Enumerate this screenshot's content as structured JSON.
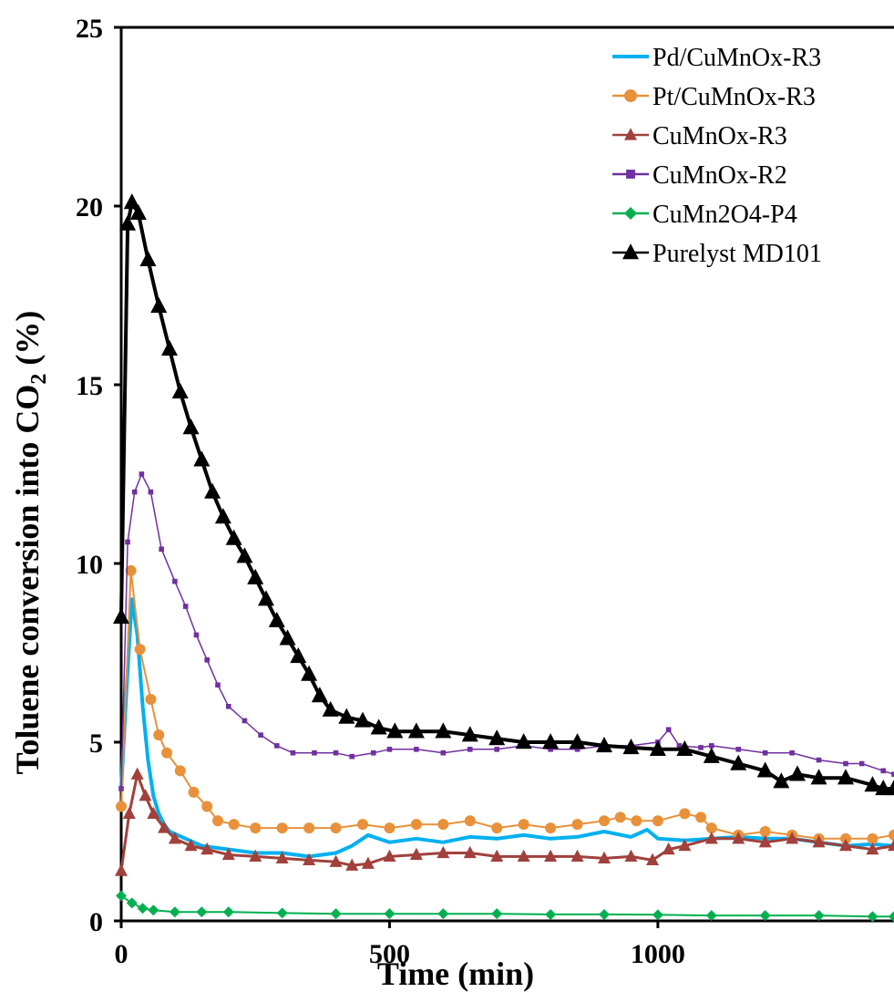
{
  "chart_data": {
    "type": "line",
    "xlabel": "Time (min)",
    "ylabel": {
      "main": "Toluene conversion into CO",
      "sub": "2",
      "suffix": " (%)"
    },
    "xlim": [
      0,
      1440
    ],
    "ylim": [
      0,
      25
    ],
    "x_ticks": [
      0,
      500,
      1000
    ],
    "y_ticks": [
      0,
      5,
      10,
      15,
      20,
      25
    ],
    "grid": false,
    "legend_position": "top-right",
    "series": [
      {
        "name": "Pd/CuMnOx-R3",
        "color": "#00b0f0",
        "marker": "none",
        "points": [
          [
            0,
            3.7
          ],
          [
            10,
            6.5
          ],
          [
            20,
            9.0
          ],
          [
            30,
            8.0
          ],
          [
            40,
            6.0
          ],
          [
            50,
            4.5
          ],
          [
            60,
            3.5
          ],
          [
            70,
            3.0
          ],
          [
            80,
            2.7
          ],
          [
            90,
            2.5
          ],
          [
            120,
            2.3
          ],
          [
            150,
            2.1
          ],
          [
            200,
            2.0
          ],
          [
            250,
            1.9
          ],
          [
            300,
            1.9
          ],
          [
            350,
            1.8
          ],
          [
            400,
            1.9
          ],
          [
            430,
            2.1
          ],
          [
            460,
            2.4
          ],
          [
            500,
            2.2
          ],
          [
            550,
            2.3
          ],
          [
            600,
            2.2
          ],
          [
            650,
            2.35
          ],
          [
            700,
            2.3
          ],
          [
            750,
            2.4
          ],
          [
            800,
            2.3
          ],
          [
            850,
            2.35
          ],
          [
            900,
            2.5
          ],
          [
            950,
            2.35
          ],
          [
            980,
            2.55
          ],
          [
            1000,
            2.3
          ],
          [
            1050,
            2.25
          ],
          [
            1100,
            2.3
          ],
          [
            1150,
            2.35
          ],
          [
            1200,
            2.3
          ],
          [
            1250,
            2.3
          ],
          [
            1300,
            2.2
          ],
          [
            1350,
            2.1
          ],
          [
            1400,
            2.15
          ],
          [
            1440,
            2.1
          ]
        ]
      },
      {
        "name": "Pt/CuMnOx-R3",
        "color": "#e8913a",
        "marker": "circle",
        "points": [
          [
            0,
            3.2
          ],
          [
            18,
            9.8
          ],
          [
            35,
            7.6
          ],
          [
            55,
            6.2
          ],
          [
            70,
            5.2
          ],
          [
            85,
            4.7
          ],
          [
            110,
            4.2
          ],
          [
            135,
            3.6
          ],
          [
            160,
            3.2
          ],
          [
            180,
            2.8
          ],
          [
            210,
            2.7
          ],
          [
            250,
            2.6
          ],
          [
            300,
            2.6
          ],
          [
            350,
            2.6
          ],
          [
            400,
            2.6
          ],
          [
            450,
            2.7
          ],
          [
            500,
            2.6
          ],
          [
            550,
            2.7
          ],
          [
            600,
            2.7
          ],
          [
            650,
            2.8
          ],
          [
            700,
            2.6
          ],
          [
            750,
            2.7
          ],
          [
            800,
            2.6
          ],
          [
            850,
            2.7
          ],
          [
            900,
            2.8
          ],
          [
            930,
            2.9
          ],
          [
            960,
            2.8
          ],
          [
            1000,
            2.8
          ],
          [
            1050,
            3.0
          ],
          [
            1080,
            2.9
          ],
          [
            1100,
            2.6
          ],
          [
            1150,
            2.4
          ],
          [
            1200,
            2.5
          ],
          [
            1250,
            2.4
          ],
          [
            1300,
            2.3
          ],
          [
            1350,
            2.3
          ],
          [
            1400,
            2.3
          ],
          [
            1440,
            2.4
          ]
        ]
      },
      {
        "name": "CuMnOx-R3",
        "color": "#a0413c",
        "marker": "triangle",
        "points": [
          [
            0,
            1.4
          ],
          [
            15,
            3.0
          ],
          [
            30,
            4.1
          ],
          [
            45,
            3.5
          ],
          [
            60,
            3.0
          ],
          [
            80,
            2.6
          ],
          [
            100,
            2.3
          ],
          [
            130,
            2.1
          ],
          [
            160,
            2.0
          ],
          [
            200,
            1.85
          ],
          [
            250,
            1.8
          ],
          [
            300,
            1.75
          ],
          [
            350,
            1.7
          ],
          [
            400,
            1.65
          ],
          [
            430,
            1.55
          ],
          [
            460,
            1.6
          ],
          [
            500,
            1.8
          ],
          [
            550,
            1.85
          ],
          [
            600,
            1.9
          ],
          [
            650,
            1.9
          ],
          [
            700,
            1.8
          ],
          [
            750,
            1.8
          ],
          [
            800,
            1.8
          ],
          [
            850,
            1.8
          ],
          [
            900,
            1.75
          ],
          [
            950,
            1.8
          ],
          [
            990,
            1.7
          ],
          [
            1020,
            2.0
          ],
          [
            1050,
            2.1
          ],
          [
            1100,
            2.3
          ],
          [
            1150,
            2.3
          ],
          [
            1200,
            2.2
          ],
          [
            1250,
            2.3
          ],
          [
            1300,
            2.2
          ],
          [
            1350,
            2.1
          ],
          [
            1400,
            2.0
          ],
          [
            1440,
            2.1
          ]
        ]
      },
      {
        "name": "CuMnOx-R2",
        "color": "#7030a0",
        "marker": "square",
        "points": [
          [
            0,
            3.7
          ],
          [
            12,
            10.6
          ],
          [
            25,
            12.0
          ],
          [
            38,
            12.5
          ],
          [
            55,
            12.0
          ],
          [
            75,
            10.4
          ],
          [
            100,
            9.5
          ],
          [
            120,
            8.8
          ],
          [
            140,
            8.0
          ],
          [
            160,
            7.3
          ],
          [
            180,
            6.6
          ],
          [
            200,
            6.0
          ],
          [
            230,
            5.6
          ],
          [
            260,
            5.2
          ],
          [
            290,
            4.9
          ],
          [
            320,
            4.7
          ],
          [
            360,
            4.7
          ],
          [
            400,
            4.7
          ],
          [
            430,
            4.6
          ],
          [
            470,
            4.7
          ],
          [
            500,
            4.8
          ],
          [
            550,
            4.8
          ],
          [
            600,
            4.7
          ],
          [
            650,
            4.8
          ],
          [
            700,
            4.8
          ],
          [
            750,
            4.9
          ],
          [
            800,
            4.8
          ],
          [
            850,
            4.8
          ],
          [
            900,
            4.9
          ],
          [
            950,
            4.9
          ],
          [
            1000,
            5.0
          ],
          [
            1020,
            5.35
          ],
          [
            1040,
            4.9
          ],
          [
            1080,
            4.85
          ],
          [
            1100,
            4.9
          ],
          [
            1150,
            4.8
          ],
          [
            1200,
            4.7
          ],
          [
            1250,
            4.7
          ],
          [
            1300,
            4.5
          ],
          [
            1350,
            4.4
          ],
          [
            1380,
            4.4
          ],
          [
            1420,
            4.2
          ],
          [
            1440,
            4.1
          ]
        ]
      },
      {
        "name": "CuMn2O4-P4",
        "color": "#00b050",
        "marker": "diamond",
        "points": [
          [
            0,
            0.7
          ],
          [
            20,
            0.5
          ],
          [
            40,
            0.35
          ],
          [
            60,
            0.3
          ],
          [
            100,
            0.25
          ],
          [
            150,
            0.25
          ],
          [
            200,
            0.25
          ],
          [
            300,
            0.22
          ],
          [
            400,
            0.2
          ],
          [
            500,
            0.2
          ],
          [
            600,
            0.2
          ],
          [
            700,
            0.2
          ],
          [
            800,
            0.18
          ],
          [
            900,
            0.18
          ],
          [
            1000,
            0.17
          ],
          [
            1100,
            0.15
          ],
          [
            1200,
            0.15
          ],
          [
            1300,
            0.15
          ],
          [
            1400,
            0.12
          ],
          [
            1440,
            0.12
          ]
        ]
      },
      {
        "name": "Purelyst MD101",
        "color": "#000000",
        "marker": "triangle",
        "points": [
          [
            0,
            8.5
          ],
          [
            12,
            19.5
          ],
          [
            20,
            20.1
          ],
          [
            32,
            19.8
          ],
          [
            50,
            18.5
          ],
          [
            70,
            17.2
          ],
          [
            90,
            16.0
          ],
          [
            110,
            14.8
          ],
          [
            130,
            13.8
          ],
          [
            150,
            12.9
          ],
          [
            170,
            12.0
          ],
          [
            190,
            11.3
          ],
          [
            210,
            10.7
          ],
          [
            230,
            10.2
          ],
          [
            250,
            9.6
          ],
          [
            270,
            9.0
          ],
          [
            290,
            8.4
          ],
          [
            310,
            7.9
          ],
          [
            330,
            7.4
          ],
          [
            350,
            6.9
          ],
          [
            370,
            6.3
          ],
          [
            390,
            5.9
          ],
          [
            420,
            5.7
          ],
          [
            450,
            5.6
          ],
          [
            480,
            5.4
          ],
          [
            510,
            5.3
          ],
          [
            550,
            5.3
          ],
          [
            600,
            5.3
          ],
          [
            650,
            5.2
          ],
          [
            700,
            5.1
          ],
          [
            750,
            5.0
          ],
          [
            800,
            5.0
          ],
          [
            850,
            5.0
          ],
          [
            900,
            4.9
          ],
          [
            950,
            4.85
          ],
          [
            1000,
            4.8
          ],
          [
            1050,
            4.8
          ],
          [
            1100,
            4.6
          ],
          [
            1150,
            4.4
          ],
          [
            1200,
            4.2
          ],
          [
            1230,
            3.9
          ],
          [
            1260,
            4.1
          ],
          [
            1300,
            4.0
          ],
          [
            1350,
            4.0
          ],
          [
            1400,
            3.8
          ],
          [
            1420,
            3.7
          ],
          [
            1440,
            3.7
          ]
        ]
      }
    ]
  }
}
